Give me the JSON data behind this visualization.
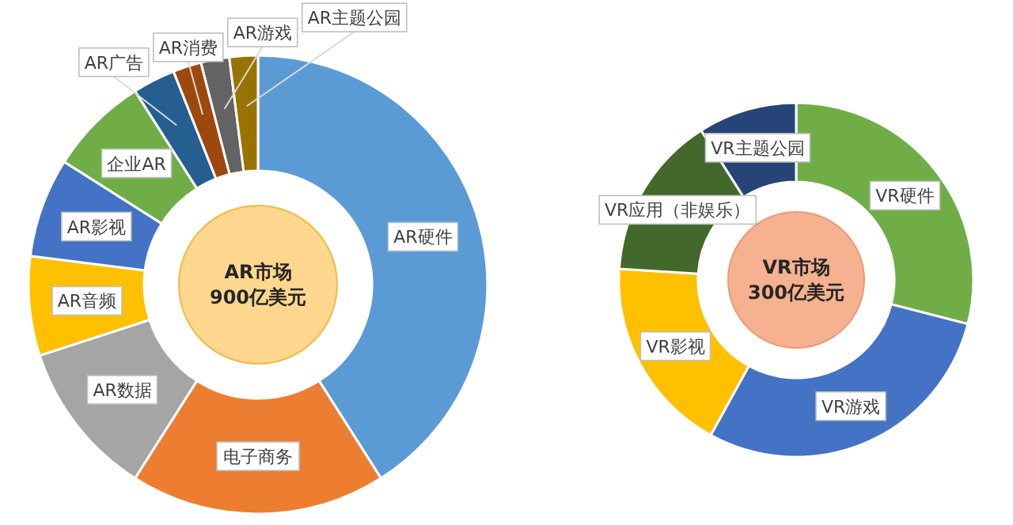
{
  "chart_data": [
    {
      "type": "donut",
      "title": "AR市场\n900亿美元",
      "categories": [
        "AR硬件",
        "电子商务",
        "AR数据",
        "AR音频",
        "AR影视",
        "企业AR",
        "AR广告",
        "AR消费",
        "AR游戏",
        "AR主题公园"
      ],
      "values": [
        41,
        18,
        11,
        7,
        7,
        7,
        3,
        2,
        2,
        2
      ],
      "colors": [
        "#5b9bd5",
        "#ed7d31",
        "#a5a5a5",
        "#ffc000",
        "#4472c4",
        "#70ad47",
        "#255e91",
        "#9e480e",
        "#636363",
        "#997300"
      ]
    },
    {
      "type": "donut",
      "title": "VR市场\n300亿美元",
      "categories": [
        "VR硬件",
        "VR游戏",
        "VR影视",
        "VR应用（非娱乐）",
        "VR主题公园"
      ],
      "values": [
        29,
        29,
        18,
        15,
        9
      ],
      "colors": [
        "#70ad47",
        "#4472c4",
        "#ffc000",
        "#43682b",
        "#264478"
      ]
    }
  ]
}
